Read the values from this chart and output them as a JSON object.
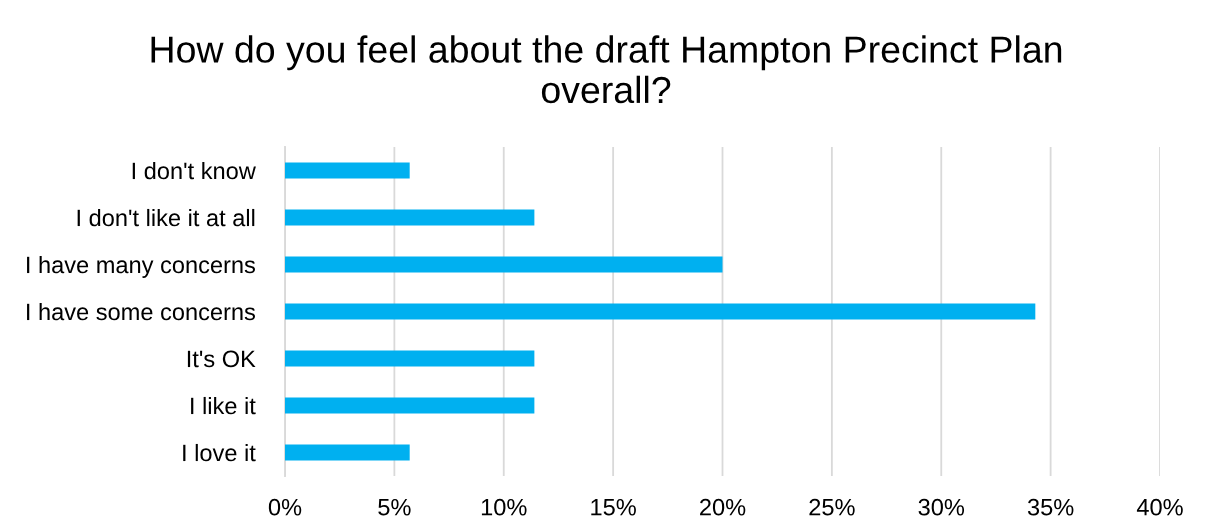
{
  "chart_data": {
    "type": "bar",
    "orientation": "horizontal",
    "title": "How do you feel about the draft Hampton Precinct Plan\noverall?",
    "categories": [
      "I don't know",
      "I don't like it at all",
      "I have many concerns",
      "I have some concerns",
      "It's OK",
      "I like it",
      "I love it"
    ],
    "values": [
      5.7,
      11.4,
      20.0,
      34.3,
      11.4,
      11.4,
      5.7
    ],
    "color": "#00b0f0",
    "xlim": [
      0,
      40
    ],
    "xticks": [
      {
        "value": 0,
        "label": "0%"
      },
      {
        "value": 5,
        "label": "5%"
      },
      {
        "value": 10,
        "label": "10%"
      },
      {
        "value": 15,
        "label": "15%"
      },
      {
        "value": 20,
        "label": "20%"
      },
      {
        "value": 25,
        "label": "25%"
      },
      {
        "value": 30,
        "label": "30%"
      },
      {
        "value": 35,
        "label": "35%"
      },
      {
        "value": 40,
        "label": "40%"
      }
    ],
    "grid": "x"
  }
}
